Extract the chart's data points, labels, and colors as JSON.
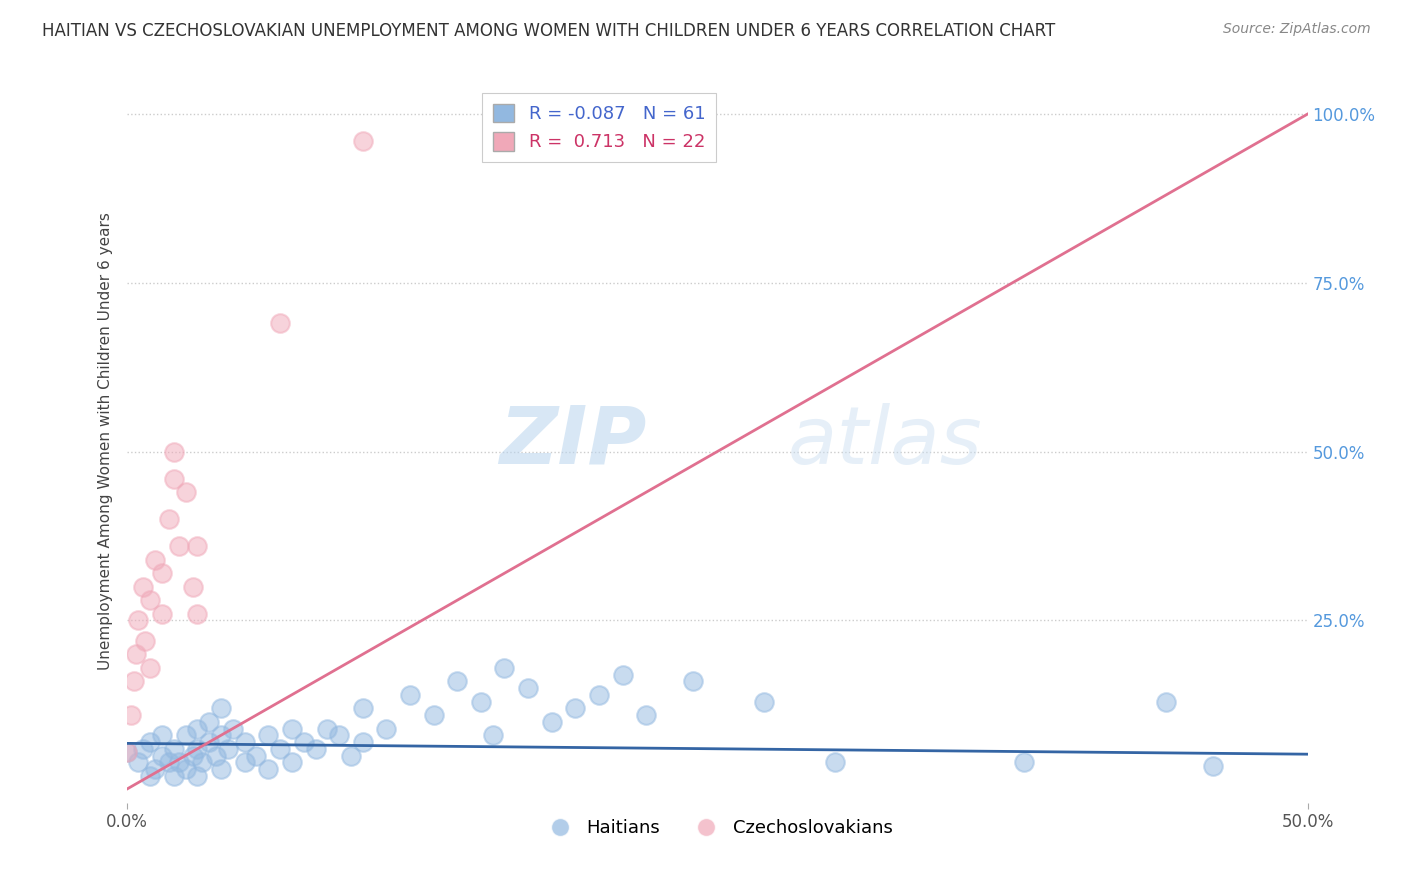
{
  "title": "HAITIAN VS CZECHOSLOVAKIAN UNEMPLOYMENT AMONG WOMEN WITH CHILDREN UNDER 6 YEARS CORRELATION CHART",
  "source": "Source: ZipAtlas.com",
  "ylabel": "Unemployment Among Women with Children Under 6 years",
  "xlim": [
    0.0,
    0.5
  ],
  "ylim": [
    -0.02,
    1.05
  ],
  "xticks": [
    0.0,
    0.5
  ],
  "xticklabels": [
    "0.0%",
    "50.0%"
  ],
  "yticks_right": [
    0.25,
    0.5,
    0.75,
    1.0
  ],
  "yticklabels_right": [
    "25.0%",
    "50.0%",
    "75.0%",
    "100.0%"
  ],
  "watermark_zip": "ZIP",
  "watermark_atlas": "atlas",
  "legend_R_labels": [
    "R = -0.087   N = 61",
    "R =  0.713   N = 22"
  ],
  "legend_group_labels": [
    "Haitians",
    "Czechoslovakians"
  ],
  "blue_color": "#92b8e0",
  "pink_color": "#f0a8b8",
  "blue_line_color": "#3465a4",
  "pink_line_color": "#e07090",
  "background_color": "#ffffff",
  "grid_color": "#cccccc",
  "title_color": "#333333",
  "blue_scatter_x": [
    0.0,
    0.005,
    0.007,
    0.01,
    0.01,
    0.012,
    0.015,
    0.015,
    0.018,
    0.02,
    0.02,
    0.022,
    0.025,
    0.025,
    0.028,
    0.03,
    0.03,
    0.03,
    0.032,
    0.035,
    0.035,
    0.038,
    0.04,
    0.04,
    0.04,
    0.043,
    0.045,
    0.05,
    0.05,
    0.055,
    0.06,
    0.06,
    0.065,
    0.07,
    0.07,
    0.075,
    0.08,
    0.085,
    0.09,
    0.095,
    0.1,
    0.1,
    0.11,
    0.12,
    0.13,
    0.14,
    0.15,
    0.155,
    0.16,
    0.17,
    0.18,
    0.19,
    0.2,
    0.21,
    0.22,
    0.24,
    0.27,
    0.3,
    0.38,
    0.44,
    0.46
  ],
  "blue_scatter_y": [
    0.055,
    0.04,
    0.06,
    0.02,
    0.07,
    0.03,
    0.05,
    0.08,
    0.04,
    0.02,
    0.06,
    0.04,
    0.03,
    0.08,
    0.05,
    0.02,
    0.06,
    0.09,
    0.04,
    0.07,
    0.1,
    0.05,
    0.03,
    0.08,
    0.12,
    0.06,
    0.09,
    0.04,
    0.07,
    0.05,
    0.03,
    0.08,
    0.06,
    0.04,
    0.09,
    0.07,
    0.06,
    0.09,
    0.08,
    0.05,
    0.07,
    0.12,
    0.09,
    0.14,
    0.11,
    0.16,
    0.13,
    0.08,
    0.18,
    0.15,
    0.1,
    0.12,
    0.14,
    0.17,
    0.11,
    0.16,
    0.13,
    0.04,
    0.04,
    0.13,
    0.035
  ],
  "pink_scatter_x": [
    0.0,
    0.002,
    0.003,
    0.004,
    0.005,
    0.007,
    0.008,
    0.01,
    0.01,
    0.012,
    0.015,
    0.015,
    0.018,
    0.02,
    0.02,
    0.022,
    0.025,
    0.028,
    0.03,
    0.03,
    0.065,
    0.1
  ],
  "pink_scatter_y": [
    0.055,
    0.11,
    0.16,
    0.2,
    0.25,
    0.3,
    0.22,
    0.18,
    0.28,
    0.34,
    0.26,
    0.32,
    0.4,
    0.46,
    0.5,
    0.36,
    0.44,
    0.3,
    0.36,
    0.26,
    0.69,
    0.96
  ],
  "blue_line_x": [
    0.0,
    0.5
  ],
  "blue_line_y": [
    0.068,
    0.052
  ],
  "pink_line_x": [
    0.0,
    0.5
  ],
  "pink_line_y": [
    0.0,
    1.0
  ]
}
